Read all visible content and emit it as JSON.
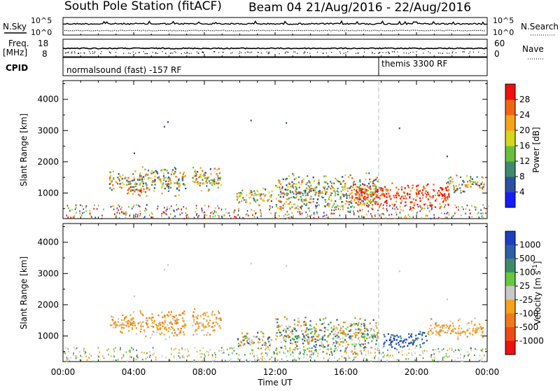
{
  "header": {
    "station": "South Pole Station (fitACF)",
    "beam": "Beam 04",
    "dates": "21/Aug/2016 - 22/Aug/2016"
  },
  "nsky_panel": {
    "left_label": "N.Sky",
    "right_label": "N.Search",
    "left_ticks": [
      "10^5",
      "10^0"
    ],
    "right_ticks": [
      "10^5",
      "10^0"
    ]
  },
  "freq_panel": {
    "left_label_1": "Freq.",
    "left_label_2": "[MHz]",
    "left_ticks": [
      "18",
      "8"
    ],
    "right_label": "Nave",
    "right_ticks": [
      "60",
      "0"
    ]
  },
  "cpid_panel": {
    "label": "CPID",
    "programs": [
      {
        "name": "normalsound (fast) -157 RF",
        "start_hour": 0
      },
      {
        "name": "themis 3300 RF",
        "start_hour": 18
      }
    ]
  },
  "chart_data": [
    {
      "type": "heatmap",
      "name": "power",
      "ylabel": "Slant Range [km]",
      "yticks": [
        1000,
        2000,
        3000,
        4000
      ],
      "ylim": [
        180,
        4600
      ],
      "xlabel": "",
      "xlim_hours": [
        0,
        24
      ],
      "colorbar": {
        "label": "Power [dB]",
        "ticks": [
          "4",
          "8",
          "12",
          "16",
          "20",
          "24",
          "28"
        ],
        "colors": [
          "#1a1aff",
          "#2d4fa0",
          "#3e8a6e",
          "#6cbf3e",
          "#d6d61e",
          "#f4a31a",
          "#f26414",
          "#ee1111"
        ]
      },
      "regions": [
        {
          "t": [
            2.6,
            4.2
          ],
          "r": [
            1000,
            1800
          ],
          "level": "medium"
        },
        {
          "t": [
            4.2,
            6.9
          ],
          "r": [
            900,
            1900
          ],
          "level": "medium"
        },
        {
          "t": [
            3.6,
            4.4
          ],
          "r": [
            900,
            1300
          ],
          "level": "high"
        },
        {
          "t": [
            7.3,
            8.9
          ],
          "r": [
            1000,
            1900
          ],
          "level": "medium"
        },
        {
          "t": [
            9.8,
            11.8
          ],
          "r": [
            600,
            1200
          ],
          "level": "medium"
        },
        {
          "t": [
            12.0,
            17.8
          ],
          "r": [
            400,
            1700
          ],
          "level": "medium"
        },
        {
          "t": [
            16.3,
            21.8
          ],
          "r": [
            500,
            1400
          ],
          "level": "high"
        },
        {
          "t": [
            21.6,
            23.8
          ],
          "r": [
            1000,
            1600
          ],
          "level": "medium"
        }
      ]
    },
    {
      "type": "heatmap",
      "name": "velocity",
      "ylabel": "Slant Range [km]",
      "yticks": [
        1000,
        2000,
        3000,
        4000
      ],
      "ylim": [
        180,
        4600
      ],
      "xlabel": "Time UT",
      "xticks": [
        "00:00",
        "04:00",
        "08:00",
        "12:00",
        "16:00",
        "20:00",
        "00:00"
      ],
      "xlim_hours": [
        0,
        24
      ],
      "colorbar": {
        "label": "Velocity [m s^-1]",
        "ticks": [
          "1000",
          "500",
          "100",
          "25",
          "-25",
          "-100",
          "-500",
          "-1000"
        ],
        "colors": [
          "#1c3fbf",
          "#2f5fa5",
          "#3f8a6a",
          "#66c83e",
          "#c8c8c8",
          "#f5a21e",
          "#f07a18",
          "#f04a14",
          "#ee1111"
        ]
      },
      "regions": [
        {
          "t": [
            2.6,
            4.2
          ],
          "r": [
            1000,
            1800
          ],
          "level": "neg"
        },
        {
          "t": [
            4.2,
            6.9
          ],
          "r": [
            900,
            1900
          ],
          "level": "neg"
        },
        {
          "t": [
            7.3,
            8.9
          ],
          "r": [
            1000,
            1900
          ],
          "level": "neg"
        },
        {
          "t": [
            9.8,
            11.8
          ],
          "r": [
            600,
            1200
          ],
          "level": "mix"
        },
        {
          "t": [
            12.0,
            17.8
          ],
          "r": [
            400,
            1700
          ],
          "level": "mix"
        },
        {
          "t": [
            18.1,
            20.6
          ],
          "r": [
            600,
            1200
          ],
          "level": "pos"
        },
        {
          "t": [
            20.6,
            23.8
          ],
          "r": [
            900,
            1600
          ],
          "level": "neg"
        }
      ]
    }
  ]
}
